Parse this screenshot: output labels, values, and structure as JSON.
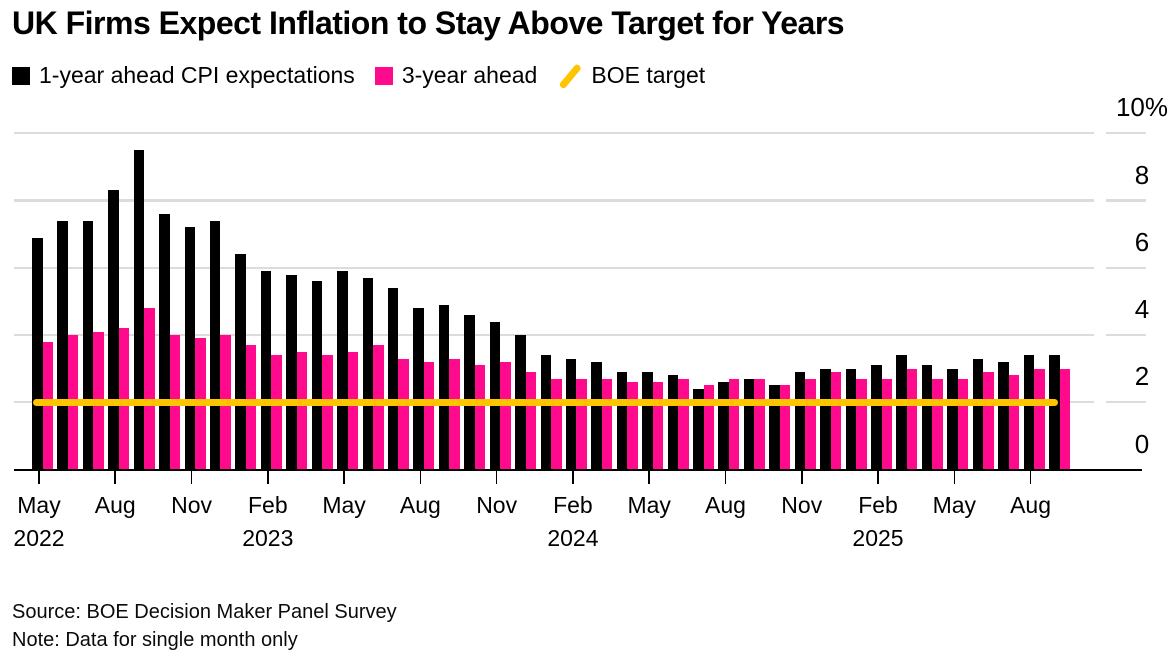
{
  "title": "UK Firms Expect Inflation to Stay Above Target for Years",
  "legend": [
    {
      "label": "1-year ahead CPI expectations",
      "swatch": "square",
      "color": "#000000"
    },
    {
      "label": "3-year ahead",
      "swatch": "square",
      "color": "#ff0a8c"
    },
    {
      "label": "BOE target",
      "swatch": "slash",
      "color": "#ffc400"
    }
  ],
  "source_line": "Source: BOE Decision Maker Panel Survey",
  "note_line": "Note: Data for single month only",
  "colors": {
    "bar_1yr": "#000000",
    "bar_3yr": "#ff0a8c",
    "target_line": "#ffc400",
    "gridline": "#dcdcdc",
    "axis": "#000000",
    "text": "#000000",
    "background": "#ffffff"
  },
  "chart_data": {
    "type": "bar",
    "title": "UK Firms Expect Inflation to Stay Above Target for Years",
    "categories": [
      "May 2022",
      "Jun 2022",
      "Jul 2022",
      "Aug 2022",
      "Sep 2022",
      "Oct 2022",
      "Nov 2022",
      "Dec 2022",
      "Jan 2023",
      "Feb 2023",
      "Mar 2023",
      "Apr 2023",
      "May 2023",
      "Jun 2023",
      "Jul 2023",
      "Aug 2023",
      "Sep 2023",
      "Oct 2023",
      "Nov 2023",
      "Dec 2023",
      "Jan 2024",
      "Feb 2024",
      "Mar 2024",
      "Apr 2024",
      "May 2024",
      "Jun 2024",
      "Jul 2024",
      "Aug 2024",
      "Sep 2024",
      "Oct 2024",
      "Nov 2024",
      "Dec 2024",
      "Jan 2025",
      "Feb 2025",
      "Mar 2025",
      "Apr 2025",
      "May 2025",
      "Jun 2025",
      "Jul 2025",
      "Aug 2025",
      "Sep 2025"
    ],
    "series": [
      {
        "name": "1-year ahead CPI expectations",
        "color": "#000000",
        "values": [
          6.9,
          7.4,
          7.4,
          8.3,
          9.5,
          7.6,
          7.2,
          7.4,
          6.4,
          5.9,
          5.8,
          5.6,
          5.9,
          5.7,
          5.4,
          4.8,
          4.9,
          4.6,
          4.4,
          4.0,
          3.4,
          3.3,
          3.2,
          2.9,
          2.9,
          2.8,
          2.4,
          2.6,
          2.7,
          2.5,
          2.9,
          3.0,
          3.0,
          3.1,
          3.4,
          3.1,
          3.0,
          3.3,
          3.2,
          3.4,
          3.4
        ]
      },
      {
        "name": "3-year ahead",
        "color": "#ff0a8c",
        "values": [
          3.8,
          4.0,
          4.1,
          4.2,
          4.8,
          4.0,
          3.9,
          4.0,
          3.7,
          3.4,
          3.5,
          3.4,
          3.5,
          3.7,
          3.3,
          3.2,
          3.3,
          3.1,
          3.2,
          2.9,
          2.7,
          2.7,
          2.7,
          2.6,
          2.6,
          2.7,
          2.5,
          2.7,
          2.7,
          2.5,
          2.7,
          2.9,
          2.7,
          2.7,
          3.0,
          2.7,
          2.7,
          2.9,
          2.8,
          3.0,
          3.0
        ]
      }
    ],
    "target": {
      "label": "BOE target",
      "value": 2,
      "color": "#ffc400"
    },
    "y_axis": {
      "unit": "%",
      "ylim": [
        0,
        10
      ],
      "ticks": [
        {
          "v": 0,
          "label": "0"
        },
        {
          "v": 2,
          "label": "2"
        },
        {
          "v": 4,
          "label": "4"
        },
        {
          "v": 6,
          "label": "6"
        },
        {
          "v": 8,
          "label": "8"
        },
        {
          "v": 10,
          "label": "10%"
        }
      ]
    },
    "x_ticks": [
      {
        "i": 0,
        "month": "May",
        "year": "2022"
      },
      {
        "i": 3,
        "month": "Aug"
      },
      {
        "i": 6,
        "month": "Nov"
      },
      {
        "i": 9,
        "month": "Feb",
        "year": "2023"
      },
      {
        "i": 12,
        "month": "May"
      },
      {
        "i": 15,
        "month": "Aug"
      },
      {
        "i": 18,
        "month": "Nov"
      },
      {
        "i": 21,
        "month": "Feb",
        "year": "2024"
      },
      {
        "i": 24,
        "month": "May"
      },
      {
        "i": 27,
        "month": "Aug"
      },
      {
        "i": 30,
        "month": "Nov"
      },
      {
        "i": 33,
        "month": "Feb",
        "year": "2025"
      },
      {
        "i": 36,
        "month": "May"
      },
      {
        "i": 39,
        "month": "Aug"
      }
    ],
    "grid": true,
    "legend_position": "top"
  }
}
